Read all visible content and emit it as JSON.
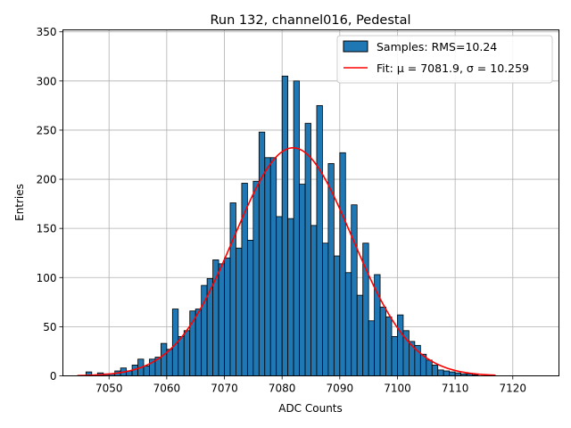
{
  "chart_data": {
    "type": "bar",
    "title": "Run 132, channel016, Pedestal",
    "xlabel": "ADC Counts",
    "ylabel": "Entries",
    "xlim": [
      7042,
      7128
    ],
    "ylim": [
      0,
      352
    ],
    "xticks": [
      7050,
      7060,
      7070,
      7080,
      7090,
      7100,
      7110,
      7120
    ],
    "yticks": [
      0,
      50,
      100,
      150,
      200,
      250,
      300,
      350
    ],
    "grid": true,
    "legend_position": "top-right",
    "bins": {
      "start": 7046,
      "width": 1,
      "values": [
        4,
        1,
        3,
        2,
        2,
        5,
        8,
        5,
        11,
        17,
        10,
        17,
        19,
        33,
        27,
        68,
        40,
        46,
        66,
        68,
        92,
        99,
        118,
        114,
        120,
        176,
        130,
        196,
        138,
        198,
        248,
        222,
        222,
        162,
        305,
        160,
        300,
        195,
        257,
        153,
        275,
        135,
        216,
        122,
        227,
        105,
        174,
        82,
        135,
        56,
        103,
        70,
        60,
        40,
        62,
        46,
        35,
        31,
        22,
        16,
        11,
        6,
        5,
        4,
        3,
        2,
        2,
        1
      ]
    },
    "series": [
      {
        "name": "Samples: RMS=10.24",
        "kind": "histogram",
        "color": "#1f77b4",
        "edgecolor": "#000000"
      },
      {
        "name": "Fit: μ = 7081.9, σ = 10.259",
        "kind": "gaussian",
        "color": "#ff0000",
        "mu": 7081.9,
        "sigma": 10.259,
        "amplitude": 232,
        "x_range": [
          7044.5,
          7117
        ]
      }
    ]
  }
}
